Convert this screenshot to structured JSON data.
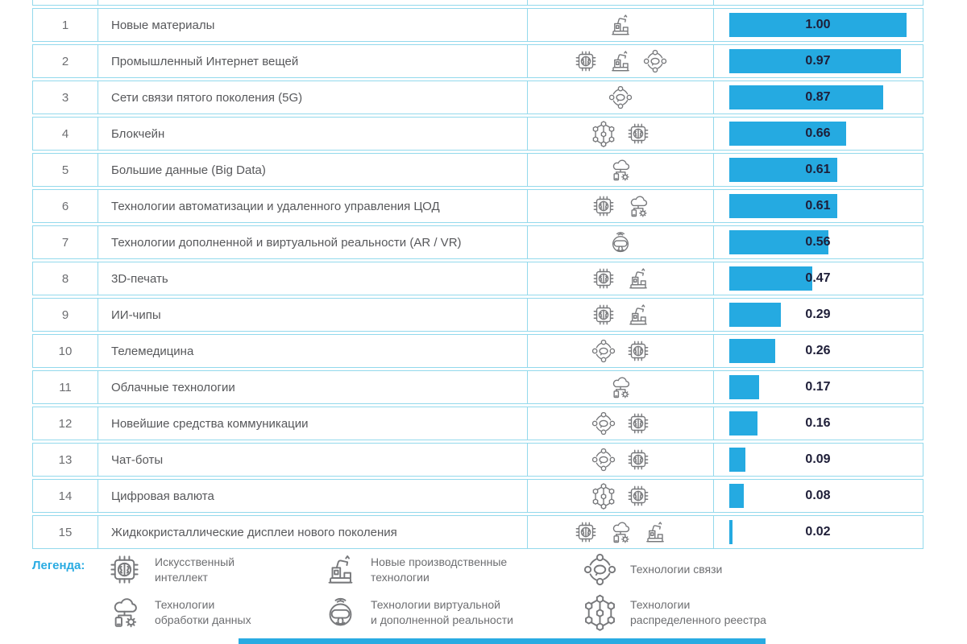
{
  "colors": {
    "bar": "#25aae1",
    "grid": "#93d9ec",
    "legend_label": "#29abe2",
    "name_text": "#57585b",
    "rank_text": "#6d6e71",
    "value_text": "#1e1e38",
    "icon_stroke": "#77787b",
    "footer_ribbon": "#29abe2"
  },
  "table": {
    "rows": [
      {
        "rank": "1",
        "name": "Новые материалы",
        "icons": [
          "production"
        ],
        "value": 1.0,
        "value_label": "1.00"
      },
      {
        "rank": "2",
        "name": "Промышленный Интернет вещей",
        "icons": [
          "ai-chip",
          "production",
          "communication"
        ],
        "value": 0.97,
        "value_label": "0.97"
      },
      {
        "rank": "3",
        "name": "Сети связи пятого поколения (5G)",
        "icons": [
          "communication"
        ],
        "value": 0.87,
        "value_label": "0.87"
      },
      {
        "rank": "4",
        "name": "Блокчейн",
        "icons": [
          "distributed-ledger",
          "ai-chip"
        ],
        "value": 0.66,
        "value_label": "0.66"
      },
      {
        "rank": "5",
        "name": "Большие данные (Big Data)",
        "icons": [
          "data-processing"
        ],
        "value": 0.61,
        "value_label": "0.61"
      },
      {
        "rank": "6",
        "name": "Технологии автоматизации и удаленного управления ЦОД",
        "icons": [
          "ai-chip",
          "data-processing"
        ],
        "value": 0.61,
        "value_label": "0.61"
      },
      {
        "rank": "7",
        "name": "Технологии дополненной и виртуальной реальности (AR / VR)",
        "icons": [
          "vr"
        ],
        "value": 0.56,
        "value_label": "0.56"
      },
      {
        "rank": "8",
        "name": "3D-печать",
        "icons": [
          "ai-chip",
          "production"
        ],
        "value": 0.47,
        "value_label": "0.47"
      },
      {
        "rank": "9",
        "name": "ИИ-чипы",
        "icons": [
          "ai-chip",
          "production"
        ],
        "value": 0.29,
        "value_label": "0.29"
      },
      {
        "rank": "10",
        "name": "Телемедицина",
        "icons": [
          "communication",
          "ai-chip"
        ],
        "value": 0.26,
        "value_label": "0.26"
      },
      {
        "rank": "11",
        "name": "Облачные технологии",
        "icons": [
          "data-processing"
        ],
        "value": 0.17,
        "value_label": "0.17"
      },
      {
        "rank": "12",
        "name": "Новейшие средства коммуникации",
        "icons": [
          "communication",
          "ai-chip"
        ],
        "value": 0.16,
        "value_label": "0.16"
      },
      {
        "rank": "13",
        "name": "Чат-боты",
        "icons": [
          "communication",
          "ai-chip"
        ],
        "value": 0.09,
        "value_label": "0.09"
      },
      {
        "rank": "14",
        "name": "Цифровая валюта",
        "icons": [
          "distributed-ledger",
          "ai-chip"
        ],
        "value": 0.08,
        "value_label": "0.08"
      },
      {
        "rank": "15",
        "name": "Жидкокристаллические дисплеи нового поколения",
        "icons": [
          "ai-chip",
          "data-processing",
          "production"
        ],
        "value": 0.02,
        "value_label": "0.02"
      }
    ]
  },
  "legend": {
    "label": "Легенда:",
    "items": [
      {
        "icon": "ai-chip",
        "text": "Искусственный\nинтеллект"
      },
      {
        "icon": "production",
        "text": "Новые производственные\nтехнологии"
      },
      {
        "icon": "communication",
        "text": "Технологии связи"
      },
      {
        "icon": "data-processing",
        "text": "Технологии\nобработки данных"
      },
      {
        "icon": "vr",
        "text": "Технологии виртуальной\nи дополненной реальности"
      },
      {
        "icon": "distributed-ledger",
        "text": "Технологии\nраспределенного реестра"
      }
    ]
  },
  "chart_data": {
    "type": "bar",
    "orientation": "horizontal",
    "categories": [
      "Новые материалы",
      "Промышленный Интернет вещей",
      "Сети связи пятого поколения (5G)",
      "Блокчейн",
      "Большие данные (Big Data)",
      "Технологии автоматизации и удаленного управления ЦОД",
      "Технологии дополненной и виртуальной реальности (AR / VR)",
      "3D-печать",
      "ИИ-чипы",
      "Телемедицина",
      "Облачные технологии",
      "Новейшие средства коммуникации",
      "Чат-боты",
      "Цифровая валюта",
      "Жидкокристаллические дисплеи нового поколения"
    ],
    "values": [
      1.0,
      0.97,
      0.87,
      0.66,
      0.61,
      0.61,
      0.56,
      0.47,
      0.29,
      0.26,
      0.17,
      0.16,
      0.09,
      0.08,
      0.02
    ],
    "xlim": [
      0,
      1
    ],
    "value_labels": [
      "1.00",
      "0.97",
      "0.87",
      "0.66",
      "0.61",
      "0.61",
      "0.56",
      "0.47",
      "0.29",
      "0.26",
      "0.17",
      "0.16",
      "0.09",
      "0.08",
      "0.02"
    ],
    "title": "",
    "xlabel": "",
    "ylabel": "",
    "grid": false,
    "legend_position": "bottom"
  }
}
